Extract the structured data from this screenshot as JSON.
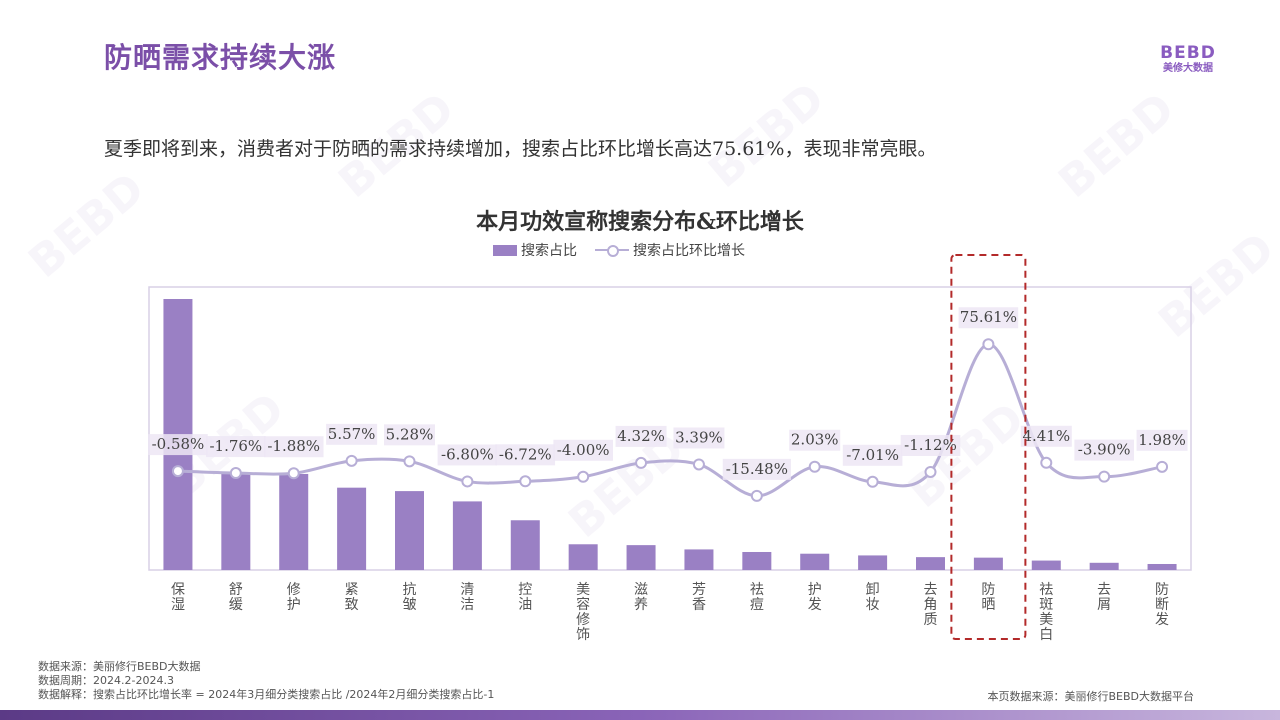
{
  "header": {
    "title": "防晒需求持续大涨",
    "logo_mark": "BEBD",
    "logo_sub": "美修大数据"
  },
  "intro_text": "夏季即将到来，消费者对于防晒的需求持续增加，搜索占比环比增长高达75.61%，表现非常亮眼。",
  "chart_data": {
    "type": "bar",
    "title": "本月功效宣称搜索分布&环比增长",
    "legend_position": "top",
    "categories": [
      "保湿",
      "舒缓",
      "修护",
      "紧致",
      "抗皱",
      "清洁",
      "控油",
      "美容修饰",
      "滋养",
      "芳香",
      "祛痘",
      "护发",
      "卸妆",
      "去角质",
      "防晒",
      "祛斑美白",
      "去屑",
      "防断发"
    ],
    "category_lines": [
      [
        "保",
        "湿"
      ],
      [
        "舒",
        "缓"
      ],
      [
        "修",
        "护"
      ],
      [
        "紧",
        "致"
      ],
      [
        "抗",
        "皱"
      ],
      [
        "清",
        "洁"
      ],
      [
        "控",
        "油"
      ],
      [
        "美",
        "容",
        "修",
        "饰"
      ],
      [
        "滋",
        "养"
      ],
      [
        "芳",
        "香"
      ],
      [
        "祛",
        "痘"
      ],
      [
        "护",
        "发"
      ],
      [
        "卸",
        "妆"
      ],
      [
        "去",
        "角",
        "质"
      ],
      [
        "防",
        "晒"
      ],
      [
        "祛",
        "斑",
        "美",
        "白"
      ],
      [
        "去",
        "屑"
      ],
      [
        "防",
        "断",
        "发"
      ]
    ],
    "series": [
      {
        "name": "搜索占比",
        "type": "bar",
        "color": "#9a80c4",
        "values": [
          15.8,
          5.6,
          5.6,
          4.8,
          4.6,
          4.0,
          2.9,
          1.5,
          1.45,
          1.2,
          1.05,
          0.95,
          0.85,
          0.75,
          0.72,
          0.55,
          0.42,
          0.35
        ]
      },
      {
        "name": "搜索占比环比增长",
        "type": "line",
        "color": "#b7aed6",
        "values": [
          -0.58,
          -1.76,
          -1.88,
          5.57,
          5.28,
          -6.8,
          -6.72,
          -4.0,
          4.32,
          3.39,
          -15.48,
          2.03,
          -7.01,
          -1.12,
          75.61,
          4.41,
          -3.9,
          1.98
        ],
        "labels": [
          "-0.58%",
          "-1.76%",
          "-1.88%",
          "5.57%",
          "5.28%",
          "-6.80%",
          "-6.72%",
          "-4.00%",
          "4.32%",
          "3.39%",
          "-15.48%",
          "2.03%",
          "-7.01%",
          "-1.12%",
          "75.61%",
          "4.41%",
          "-3.90%",
          "1.98%"
        ]
      }
    ],
    "bar_ylim": [
      0,
      16.5
    ],
    "line_ylim": [
      -60,
      110
    ],
    "highlight_category": "防晒",
    "highlight_color": "#b32a2a"
  },
  "footer": {
    "source": "数据来源：美丽修行BEBD大数据",
    "period": "数据周期：2024.2-2024.3",
    "explain": "数据解释：搜索占比环比增长率 = 2024年3月细分类搜索占比 /2024年2月细分类搜索占比-1",
    "page_source": "本页数据来源：美丽修行BEBD大数据平台"
  }
}
